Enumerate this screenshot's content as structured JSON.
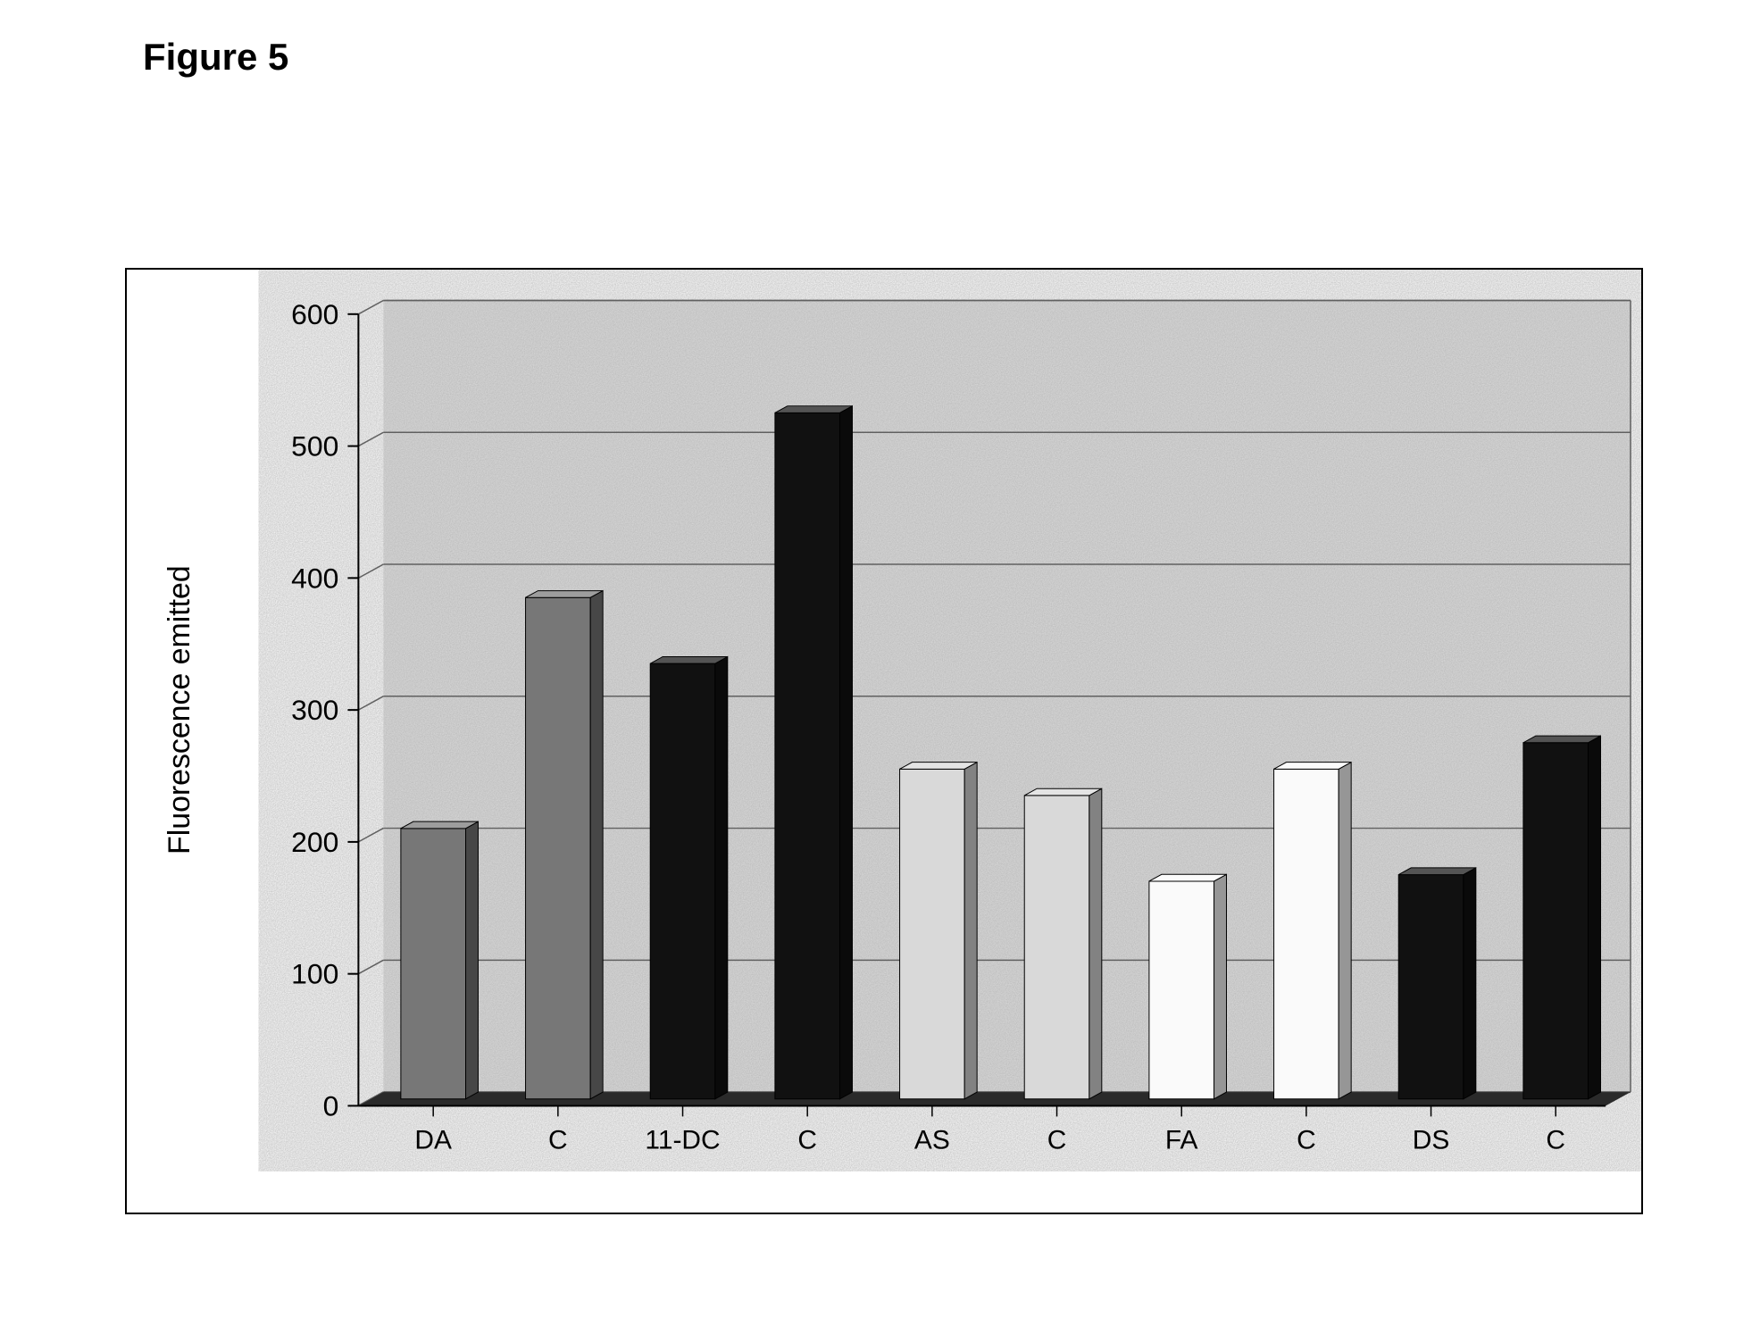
{
  "figure": {
    "title": "Figure 5",
    "title_fontsize": 42,
    "title_fontweight": "bold"
  },
  "chart": {
    "type": "bar-3d",
    "ylabel": "Fluorescence emitted",
    "ylabel_fontsize": 34,
    "ylim": [
      0,
      600
    ],
    "ytick_step": 100,
    "ytick_fontsize": 32,
    "xtick_fontsize": 30,
    "categories": [
      "DA",
      "C",
      "11-DC",
      "C",
      "AS",
      "C",
      "FA",
      "C",
      "DS",
      "C"
    ],
    "values": [
      205,
      380,
      330,
      520,
      250,
      230,
      165,
      250,
      170,
      270
    ],
    "bar_colors": [
      "#777777",
      "#777777",
      "#111111",
      "#111111",
      "#d9d9d9",
      "#d9d9d9",
      "#fafafa",
      "#fafafa",
      "#111111",
      "#111111"
    ],
    "bar_width": 0.52,
    "depth": 28,
    "plot_bg_color": "#dcdcdc",
    "noise_overlay": true,
    "gridline_color": "#606060",
    "gridline_light": "#c4c4c4",
    "floor_color": "#2a2a2a",
    "axis_color": "#000000",
    "outer_border_color": "#000000",
    "page_bg": "#ffffff"
  }
}
